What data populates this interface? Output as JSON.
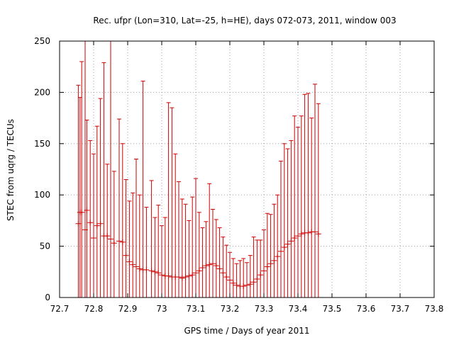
{
  "chart_data": {
    "type": "scatter",
    "title": "Rec. ufpr (Lon=310, Lat=-25, h=HE), days 072-073, 2011, window 003",
    "xlabel": "GPS time / Days of year 2011",
    "ylabel": "STEC from uqrg / TECUs",
    "xlim": [
      72.7,
      73.8
    ],
    "ylim": [
      0,
      250
    ],
    "x_ticks": [
      "72.7",
      "72.8",
      "72.9",
      "73",
      "73.1",
      "73.2",
      "73.3",
      "73.4",
      "73.5",
      "73.6",
      "73.7",
      "73.8"
    ],
    "y_ticks": [
      "0",
      "50",
      "100",
      "150",
      "200",
      "250"
    ],
    "grid": true,
    "legend": "none",
    "colors": {
      "series": "#cc0000",
      "axis": "#000000",
      "grid": "#a0a0a0"
    },
    "series": [
      {
        "points": [
          {
            "x": 72.755,
            "y": 72,
            "yerr": 135
          },
          {
            "x": 72.76,
            "y": 83,
            "yerr": 112
          },
          {
            "x": 72.765,
            "y": 83,
            "yerr": 147
          },
          {
            "x": 72.775,
            "y": 66,
            "yerr": 184
          },
          {
            "x": 72.78,
            "y": 85,
            "yerr": 88
          },
          {
            "x": 72.79,
            "y": 73,
            "yerr": 80
          },
          {
            "x": 72.8,
            "y": 58,
            "yerr": 82
          },
          {
            "x": 72.81,
            "y": 70,
            "yerr": 97
          },
          {
            "x": 72.82,
            "y": 72,
            "yerr": 122
          },
          {
            "x": 72.83,
            "y": 60,
            "yerr": 169
          },
          {
            "x": 72.84,
            "y": 60,
            "yerr": 70
          },
          {
            "x": 72.85,
            "y": 57,
            "yerr": 206
          },
          {
            "x": 72.86,
            "y": 53,
            "yerr": 70
          },
          {
            "x": 72.875,
            "y": 55,
            "yerr": 119
          },
          {
            "x": 72.885,
            "y": 54,
            "yerr": 96
          },
          {
            "x": 72.895,
            "y": 41,
            "yerr": 74
          },
          {
            "x": 72.905,
            "y": 35,
            "yerr": 59
          },
          {
            "x": 72.915,
            "y": 32,
            "yerr": 70
          },
          {
            "x": 72.925,
            "y": 30,
            "yerr": 105
          },
          {
            "x": 72.935,
            "y": 28,
            "yerr": 72
          },
          {
            "x": 72.945,
            "y": 27,
            "yerr": 184
          },
          {
            "x": 72.955,
            "y": 27,
            "yerr": 61
          },
          {
            "x": 72.97,
            "y": 26,
            "yerr": 88
          },
          {
            "x": 72.98,
            "y": 25,
            "yerr": 53
          },
          {
            "x": 72.99,
            "y": 24,
            "yerr": 66
          },
          {
            "x": 73.0,
            "y": 22,
            "yerr": 48
          },
          {
            "x": 73.01,
            "y": 21,
            "yerr": 57
          },
          {
            "x": 73.02,
            "y": 21,
            "yerr": 169
          },
          {
            "x": 73.03,
            "y": 20,
            "yerr": 165
          },
          {
            "x": 73.04,
            "y": 20,
            "yerr": 120
          },
          {
            "x": 73.05,
            "y": 20,
            "yerr": 93
          },
          {
            "x": 73.06,
            "y": 19,
            "yerr": 77
          },
          {
            "x": 73.07,
            "y": 20,
            "yerr": 71
          },
          {
            "x": 73.08,
            "y": 21,
            "yerr": 54
          },
          {
            "x": 73.09,
            "y": 22,
            "yerr": 76
          },
          {
            "x": 73.1,
            "y": 24,
            "yerr": 92
          },
          {
            "x": 73.11,
            "y": 26,
            "yerr": 57
          },
          {
            "x": 73.12,
            "y": 29,
            "yerr": 39
          },
          {
            "x": 73.13,
            "y": 31,
            "yerr": 43
          },
          {
            "x": 73.14,
            "y": 32,
            "yerr": 79
          },
          {
            "x": 73.15,
            "y": 33,
            "yerr": 53
          },
          {
            "x": 73.16,
            "y": 31,
            "yerr": 45
          },
          {
            "x": 73.17,
            "y": 28,
            "yerr": 40
          },
          {
            "x": 73.18,
            "y": 24,
            "yerr": 35
          },
          {
            "x": 73.19,
            "y": 20,
            "yerr": 31
          },
          {
            "x": 73.2,
            "y": 17,
            "yerr": 27
          },
          {
            "x": 73.21,
            "y": 14,
            "yerr": 24
          },
          {
            "x": 73.22,
            "y": 12,
            "yerr": 21
          },
          {
            "x": 73.23,
            "y": 11,
            "yerr": 25
          },
          {
            "x": 73.24,
            "y": 11,
            "yerr": 27
          },
          {
            "x": 73.25,
            "y": 12,
            "yerr": 22
          },
          {
            "x": 73.26,
            "y": 13,
            "yerr": 28
          },
          {
            "x": 73.27,
            "y": 15,
            "yerr": 44
          },
          {
            "x": 73.28,
            "y": 18,
            "yerr": 38
          },
          {
            "x": 73.29,
            "y": 22,
            "yerr": 34
          },
          {
            "x": 73.3,
            "y": 26,
            "yerr": 40
          },
          {
            "x": 73.31,
            "y": 30,
            "yerr": 52
          },
          {
            "x": 73.32,
            "y": 33,
            "yerr": 48
          },
          {
            "x": 73.33,
            "y": 36,
            "yerr": 55
          },
          {
            "x": 73.34,
            "y": 40,
            "yerr": 60
          },
          {
            "x": 73.35,
            "y": 45,
            "yerr": 88
          },
          {
            "x": 73.36,
            "y": 49,
            "yerr": 101
          },
          {
            "x": 73.37,
            "y": 52,
            "yerr": 93
          },
          {
            "x": 73.38,
            "y": 55,
            "yerr": 98
          },
          {
            "x": 73.39,
            "y": 58,
            "yerr": 119
          },
          {
            "x": 73.4,
            "y": 60,
            "yerr": 106
          },
          {
            "x": 73.41,
            "y": 62,
            "yerr": 115
          },
          {
            "x": 73.42,
            "y": 63,
            "yerr": 135
          },
          {
            "x": 73.43,
            "y": 63,
            "yerr": 136
          },
          {
            "x": 73.44,
            "y": 64,
            "yerr": 111
          },
          {
            "x": 73.45,
            "y": 64,
            "yerr": 144
          },
          {
            "x": 73.46,
            "y": 62,
            "yerr": 127
          }
        ]
      }
    ]
  }
}
